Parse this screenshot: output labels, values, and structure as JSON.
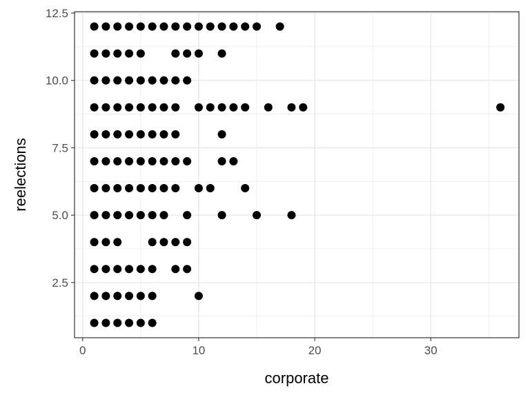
{
  "chart_data": {
    "type": "scatter",
    "title": "",
    "xlabel": "corporate",
    "ylabel": "reelections",
    "xlim": [
      -0.7,
      37.6
    ],
    "ylim": [
      0.45,
      12.55
    ],
    "x_ticks": [
      0,
      10,
      20,
      30
    ],
    "x_tick_labels": [
      "0",
      "10",
      "20",
      "30"
    ],
    "y_ticks": [
      2.5,
      5.0,
      7.5,
      10.0,
      12.5
    ],
    "y_tick_labels": [
      "2.5",
      "5.0",
      "7.5",
      "10.0",
      "12.5"
    ],
    "x_minor_ticks": [
      5,
      15,
      25,
      35
    ],
    "y_minor_ticks": [
      1.25,
      3.75,
      6.25,
      8.75,
      11.25
    ],
    "grid": true,
    "legend": "none",
    "colors": {
      "point": "#000000",
      "grid": "#ebebeb",
      "panel_border": "#333333",
      "background": "#ffffff"
    },
    "points": [
      [
        1,
        12
      ],
      [
        2,
        12
      ],
      [
        3,
        12
      ],
      [
        4,
        12
      ],
      [
        5,
        12
      ],
      [
        6,
        12
      ],
      [
        7,
        12
      ],
      [
        8,
        12
      ],
      [
        9,
        12
      ],
      [
        10,
        12
      ],
      [
        11,
        12
      ],
      [
        12,
        12
      ],
      [
        13,
        12
      ],
      [
        14,
        12
      ],
      [
        15,
        12
      ],
      [
        17,
        12
      ],
      [
        1,
        11
      ],
      [
        2,
        11
      ],
      [
        3,
        11
      ],
      [
        4,
        11
      ],
      [
        5,
        11
      ],
      [
        8,
        11
      ],
      [
        9,
        11
      ],
      [
        10,
        11
      ],
      [
        12,
        11
      ],
      [
        1,
        10
      ],
      [
        2,
        10
      ],
      [
        3,
        10
      ],
      [
        4,
        10
      ],
      [
        5,
        10
      ],
      [
        6,
        10
      ],
      [
        7,
        10
      ],
      [
        8,
        10
      ],
      [
        9,
        10
      ],
      [
        1,
        9
      ],
      [
        2,
        9
      ],
      [
        3,
        9
      ],
      [
        4,
        9
      ],
      [
        5,
        9
      ],
      [
        6,
        9
      ],
      [
        7,
        9
      ],
      [
        8,
        9
      ],
      [
        10,
        9
      ],
      [
        11,
        9
      ],
      [
        12,
        9
      ],
      [
        13,
        9
      ],
      [
        14,
        9
      ],
      [
        16,
        9
      ],
      [
        18,
        9
      ],
      [
        19,
        9
      ],
      [
        36,
        9
      ],
      [
        1,
        8
      ],
      [
        2,
        8
      ],
      [
        3,
        8
      ],
      [
        4,
        8
      ],
      [
        5,
        8
      ],
      [
        6,
        8
      ],
      [
        7,
        8
      ],
      [
        8,
        8
      ],
      [
        12,
        8
      ],
      [
        1,
        7
      ],
      [
        2,
        7
      ],
      [
        3,
        7
      ],
      [
        4,
        7
      ],
      [
        5,
        7
      ],
      [
        6,
        7
      ],
      [
        7,
        7
      ],
      [
        8,
        7
      ],
      [
        9,
        7
      ],
      [
        12,
        7
      ],
      [
        13,
        7
      ],
      [
        1,
        6
      ],
      [
        2,
        6
      ],
      [
        3,
        6
      ],
      [
        4,
        6
      ],
      [
        5,
        6
      ],
      [
        6,
        6
      ],
      [
        7,
        6
      ],
      [
        8,
        6
      ],
      [
        10,
        6
      ],
      [
        11,
        6
      ],
      [
        14,
        6
      ],
      [
        1,
        5
      ],
      [
        2,
        5
      ],
      [
        3,
        5
      ],
      [
        4,
        5
      ],
      [
        5,
        5
      ],
      [
        6,
        5
      ],
      [
        7,
        5
      ],
      [
        9,
        5
      ],
      [
        12,
        5
      ],
      [
        15,
        5
      ],
      [
        18,
        5
      ],
      [
        1,
        4
      ],
      [
        2,
        4
      ],
      [
        3,
        4
      ],
      [
        6,
        4
      ],
      [
        7,
        4
      ],
      [
        8,
        4
      ],
      [
        9,
        4
      ],
      [
        1,
        3
      ],
      [
        2,
        3
      ],
      [
        3,
        3
      ],
      [
        4,
        3
      ],
      [
        5,
        3
      ],
      [
        6,
        3
      ],
      [
        8,
        3
      ],
      [
        9,
        3
      ],
      [
        1,
        2
      ],
      [
        2,
        2
      ],
      [
        3,
        2
      ],
      [
        4,
        2
      ],
      [
        5,
        2
      ],
      [
        6,
        2
      ],
      [
        10,
        2
      ],
      [
        1,
        1
      ],
      [
        2,
        1
      ],
      [
        3,
        1
      ],
      [
        4,
        1
      ],
      [
        5,
        1
      ],
      [
        6,
        1
      ]
    ]
  }
}
